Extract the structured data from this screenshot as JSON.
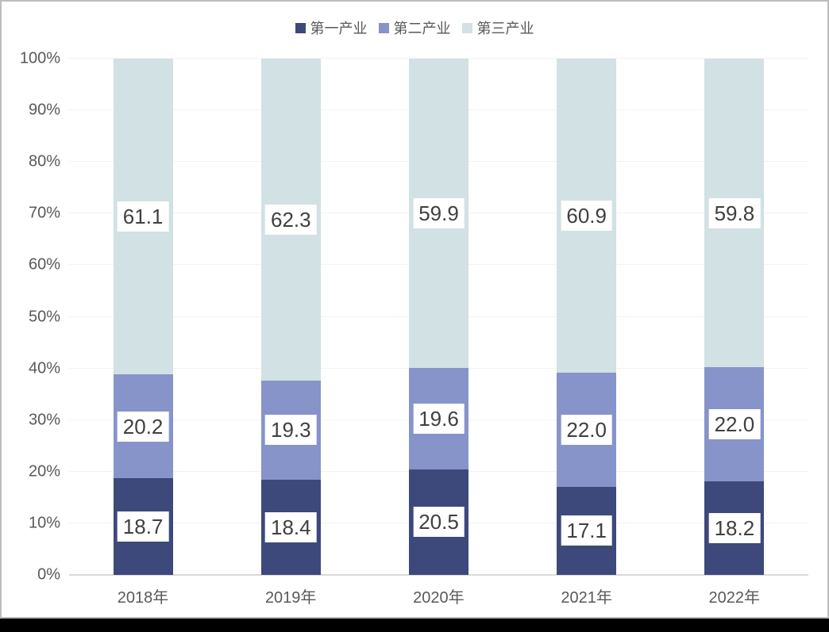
{
  "chart_data": {
    "type": "bar",
    "stacked": true,
    "units": "percent",
    "title": "",
    "xlabel": "",
    "ylabel": "",
    "categories": [
      "2018年",
      "2019年",
      "2020年",
      "2021年",
      "2022年"
    ],
    "series": [
      {
        "name": "第一产业",
        "color": "#3D497B",
        "values": [
          18.7,
          18.4,
          20.5,
          17.1,
          18.2
        ],
        "labels": [
          "18.7",
          "18.4",
          "20.5",
          "17.1",
          "18.2"
        ]
      },
      {
        "name": "第二产业",
        "color": "#8794C9",
        "values": [
          20.2,
          19.3,
          19.6,
          22.0,
          22.0
        ],
        "labels": [
          "20.2",
          "19.3",
          "19.6",
          "22.0",
          "22.0"
        ]
      },
      {
        "name": "第三产业",
        "color": "#D1E1E4",
        "values": [
          61.1,
          62.3,
          59.9,
          60.9,
          59.8
        ],
        "labels": [
          "61.1",
          "62.3",
          "59.9",
          "60.9",
          "59.8"
        ]
      }
    ],
    "y_ticks": [
      "0%",
      "10%",
      "20%",
      "30%",
      "40%",
      "50%",
      "60%",
      "70%",
      "80%",
      "90%",
      "100%"
    ],
    "ylim": [
      0,
      100
    ],
    "grid": true,
    "legend_position": "top",
    "colors": {
      "grid_line": "#f2f2f2",
      "axis_line": "#d9d9d9",
      "tick_text": "#595959",
      "data_label_text": "#3f3f3f",
      "data_label_bg": "#ffffff",
      "frame_border": "#bdbdbd",
      "background": "#ffffff"
    }
  }
}
